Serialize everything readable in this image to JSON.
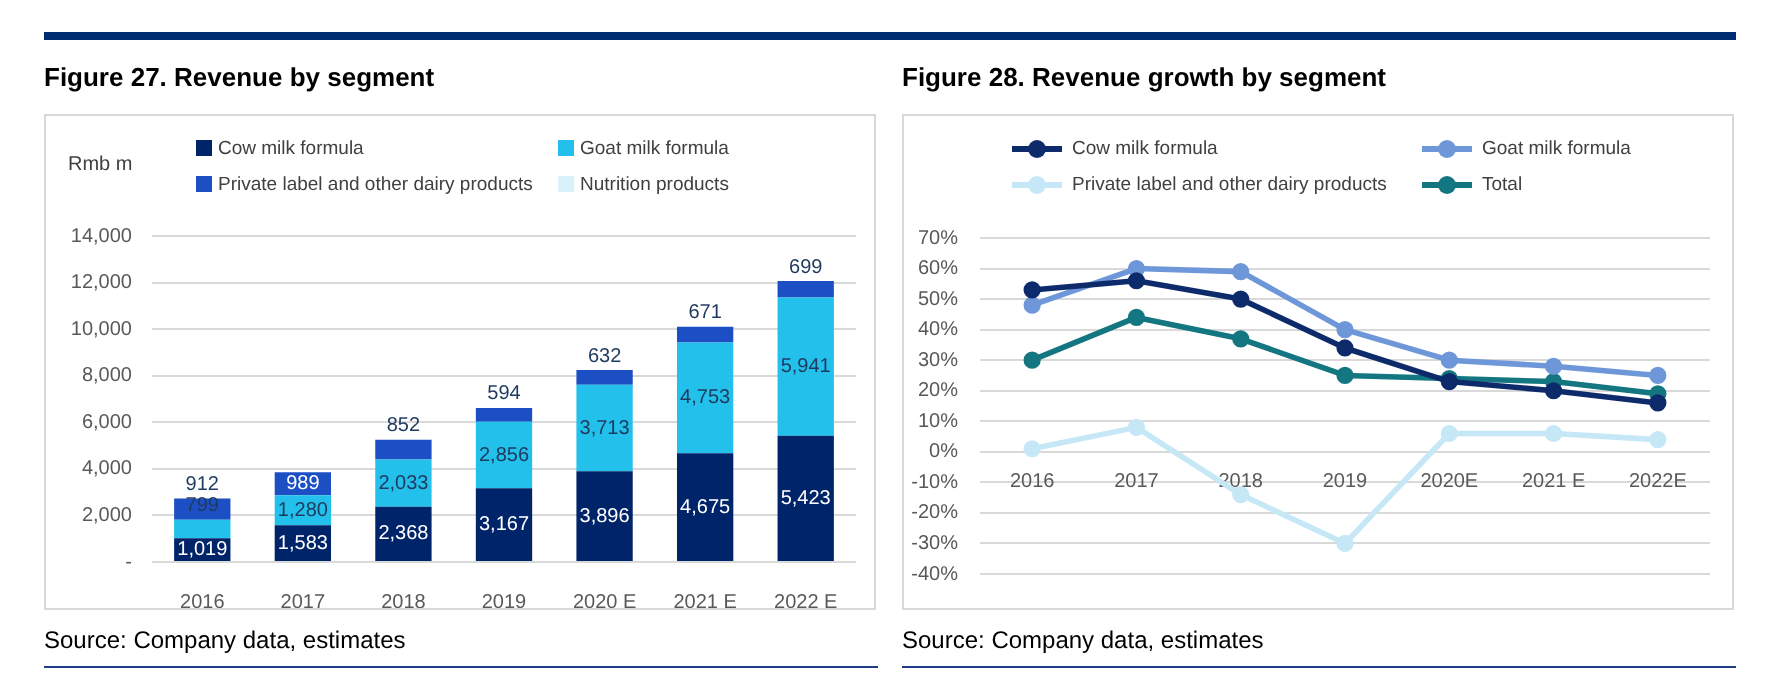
{
  "chart_data": [
    {
      "type": "bar",
      "title": "Figure 27. Revenue by segment",
      "ylabel": "Rmb m",
      "annotations": [
        "Source: Company data, estimates"
      ],
      "categories": [
        "2016",
        "2017",
        "2018",
        "2019",
        "2020 E",
        "2021 E",
        "2022 E"
      ],
      "stacked": true,
      "series": [
        {
          "name": "Cow milk formula",
          "color": "#002469",
          "values": [
            1019,
            1583,
            2368,
            3167,
            3896,
            4675,
            5423
          ],
          "value_labels": [
            "1,019",
            "1,583",
            "2,368",
            "3,167",
            "3,896",
            "4,675",
            "5,423"
          ]
        },
        {
          "name": "Goat milk formula",
          "color": "#22c0ea",
          "values": [
            799,
            1280,
            2033,
            2856,
            3713,
            4753,
            5941
          ],
          "value_labels": [
            "799",
            "1,280",
            "2,033",
            "2,856",
            "3,713",
            "4,753",
            "5,941"
          ]
        },
        {
          "name": "Private label and other dairy products",
          "color": "#1d4fc4",
          "values": [
            912,
            989,
            852,
            594,
            632,
            671,
            699
          ],
          "value_labels": [
            "912",
            "989",
            "852",
            "594",
            "632",
            "671",
            "699"
          ]
        },
        {
          "name": "Nutrition products",
          "color": "#d9f1fa",
          "values": [
            null,
            null,
            null,
            null,
            null,
            null,
            null
          ]
        }
      ],
      "ylim": [
        0,
        14000
      ],
      "yticks": [
        {
          "value": 0,
          "label": "-"
        },
        {
          "value": 2000,
          "label": "2,000"
        },
        {
          "value": 4000,
          "label": "4,000"
        },
        {
          "value": 6000,
          "label": "6,000"
        },
        {
          "value": 8000,
          "label": "8,000"
        },
        {
          "value": 10000,
          "label": "10,000"
        },
        {
          "value": 12000,
          "label": "12,000"
        },
        {
          "value": 14000,
          "label": "14,000"
        }
      ],
      "grid": "y",
      "legend": "top"
    },
    {
      "type": "line",
      "title": "Figure 28. Revenue growth by segment",
      "annotations": [
        "Source: Company data, estimates"
      ],
      "categories": [
        "2016",
        "2017",
        "2018",
        "2019",
        "2020E",
        "2021 E",
        "2022E"
      ],
      "series": [
        {
          "name": "Cow milk formula",
          "color": "#0d2b6b",
          "values": [
            53,
            56,
            50,
            34,
            23,
            20,
            16
          ]
        },
        {
          "name": "Goat milk formula",
          "color": "#6d97d8",
          "values": [
            48,
            60,
            59,
            40,
            30,
            28,
            25
          ]
        },
        {
          "name": "Private label and other dairy products",
          "color": "#c6e8f6",
          "values": [
            1,
            8,
            -14,
            -30,
            6,
            6,
            4
          ]
        },
        {
          "name": "Total",
          "color": "#137680",
          "values": [
            30,
            44,
            37,
            25,
            24,
            23,
            19
          ]
        }
      ],
      "ylim": [
        -40,
        70
      ],
      "yticks": [
        {
          "value": -40,
          "label": "-40%"
        },
        {
          "value": -30,
          "label": "-30%"
        },
        {
          "value": -20,
          "label": "-20%"
        },
        {
          "value": -10,
          "label": "-10%"
        },
        {
          "value": 0,
          "label": "0%"
        },
        {
          "value": 10,
          "label": "10%"
        },
        {
          "value": 20,
          "label": "20%"
        },
        {
          "value": 30,
          "label": "30%"
        },
        {
          "value": 40,
          "label": "40%"
        },
        {
          "value": 50,
          "label": "50%"
        },
        {
          "value": 60,
          "label": "60%"
        },
        {
          "value": 70,
          "label": "70%"
        }
      ],
      "grid": "y",
      "legend": "top",
      "marker": "circle",
      "line_style": "solid"
    }
  ]
}
